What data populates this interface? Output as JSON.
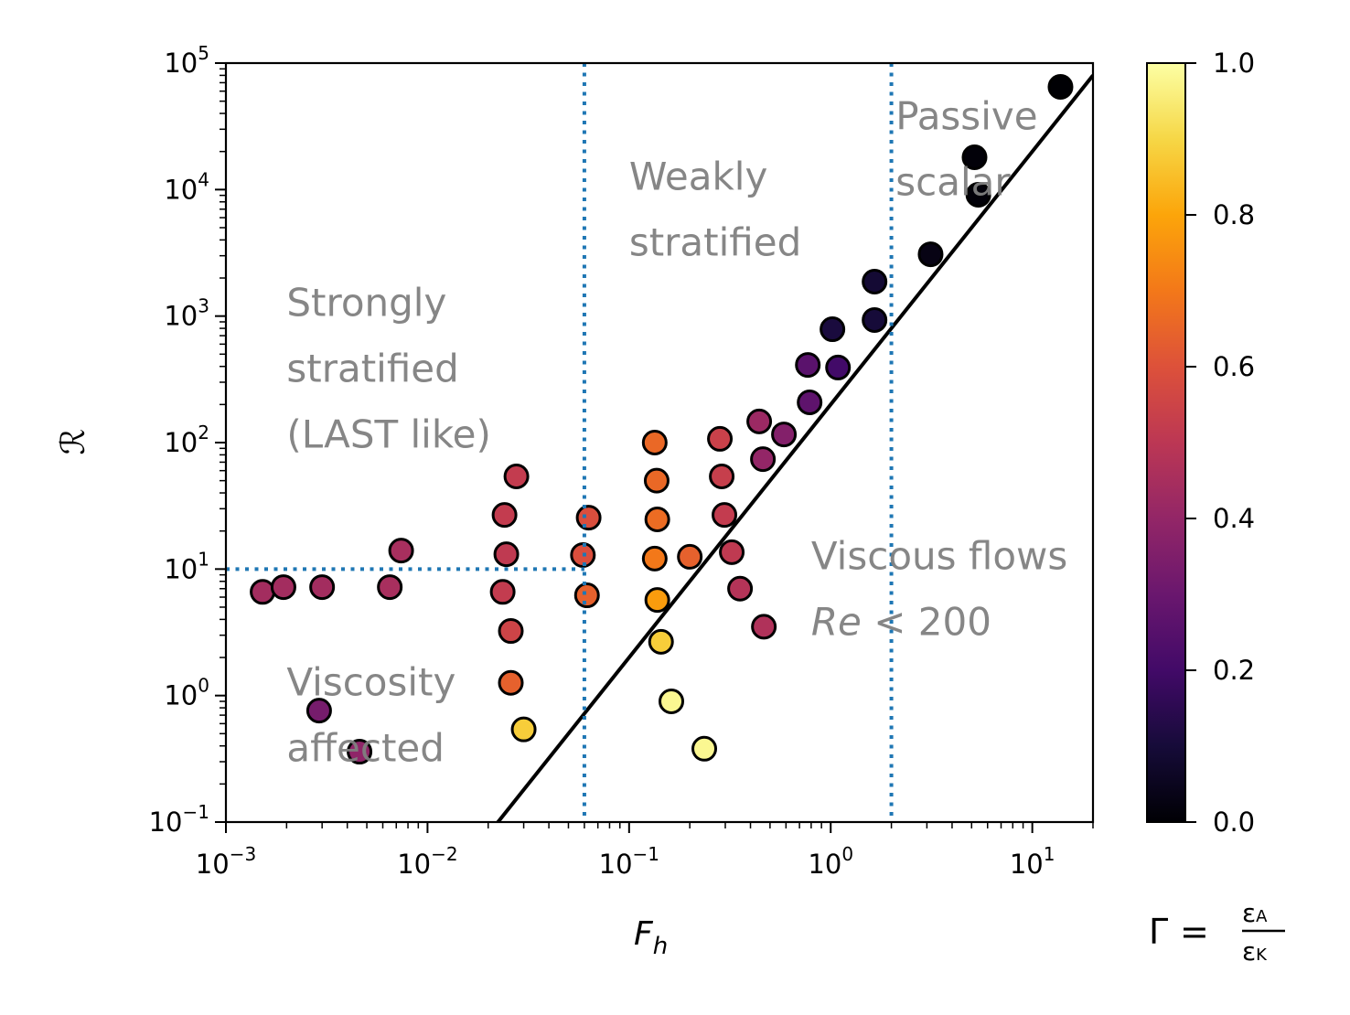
{
  "chart_data": {
    "type": "scatter",
    "title": "",
    "xlabel": "F_h",
    "ylabel": "ℛ",
    "xscale": "log",
    "yscale": "log",
    "xlim": [
      0.001,
      20
    ],
    "ylim": [
      0.1,
      100000
    ],
    "grid": false,
    "x_ticks": [
      {
        "value": 0.001,
        "base": "10",
        "exp": "−3"
      },
      {
        "value": 0.01,
        "base": "10",
        "exp": "−2"
      },
      {
        "value": 0.1,
        "base": "10",
        "exp": "−1"
      },
      {
        "value": 1,
        "base": "10",
        "exp": "0"
      },
      {
        "value": 10,
        "base": "10",
        "exp": "1"
      }
    ],
    "y_ticks": [
      {
        "value": 0.1,
        "base": "10",
        "exp": "−1"
      },
      {
        "value": 1,
        "base": "10",
        "exp": "0"
      },
      {
        "value": 10,
        "base": "10",
        "exp": "1"
      },
      {
        "value": 100,
        "base": "10",
        "exp": "2"
      },
      {
        "value": 1000,
        "base": "10",
        "exp": "3"
      },
      {
        "value": 10000,
        "base": "10",
        "exp": "4"
      },
      {
        "value": 100000,
        "base": "10",
        "exp": "5"
      }
    ],
    "colorbar": {
      "colormap": "inferno",
      "range": [
        0,
        1
      ],
      "ticks": [
        "0.0",
        "0.2",
        "0.4",
        "0.6",
        "0.8",
        "1.0"
      ],
      "label": {
        "lhs": "Γ = ",
        "num": "ε",
        "num_sub": "A",
        "den": "ε",
        "den_sub": "K"
      }
    },
    "reference_lines": [
      {
        "name": "Re = 200 line",
        "kind": "power",
        "formula": "R = 200 * Fh^2",
        "color": "#000000",
        "style": "solid"
      },
      {
        "name": "Fh = 0.06",
        "kind": "vertical",
        "x": 0.06,
        "color": "#1f77b4",
        "style": "dotted"
      },
      {
        "name": "Fh = 2",
        "kind": "vertical",
        "x": 2,
        "color": "#1f77b4",
        "style": "dotted"
      },
      {
        "name": "R = 10",
        "kind": "horizontal",
        "y": 10,
        "x_from": 0.001,
        "x_to": 0.06,
        "color": "#1f77b4",
        "style": "dotted"
      }
    ],
    "annotations": [
      {
        "lines": [
          "Strongly",
          "stratified",
          "(LAST like)"
        ],
        "x": 0.002,
        "y": 1000
      },
      {
        "lines": [
          "Weakly",
          "stratified"
        ],
        "x": 0.1,
        "y": 10000
      },
      {
        "lines": [
          "Passive",
          "scalar"
        ],
        "x": 2.1,
        "y": 30000
      },
      {
        "lines": [
          "Viscous flows",
          "Re < 200"
        ],
        "x": 0.8,
        "y": 10,
        "italic_prefix": "Re"
      },
      {
        "lines": [
          "Viscosity",
          "affected"
        ],
        "x": 0.002,
        "y": 1
      }
    ],
    "series": [
      {
        "name": "simulations",
        "points": [
          {
            "Fh": 0.00152,
            "R": 6.6,
            "Gamma": 0.44
          },
          {
            "Fh": 0.00193,
            "R": 7.2,
            "Gamma": 0.44
          },
          {
            "Fh": 0.003,
            "R": 7.2,
            "Gamma": 0.44
          },
          {
            "Fh": 0.0065,
            "R": 7.2,
            "Gamma": 0.45
          },
          {
            "Fh": 0.0074,
            "R": 14,
            "Gamma": 0.45
          },
          {
            "Fh": 0.0029,
            "R": 0.76,
            "Gamma": 0.33
          },
          {
            "Fh": 0.0046,
            "R": 0.36,
            "Gamma": 0.39
          },
          {
            "Fh": 0.0276,
            "R": 54,
            "Gamma": 0.52
          },
          {
            "Fh": 0.0241,
            "R": 26.8,
            "Gamma": 0.52
          },
          {
            "Fh": 0.0246,
            "R": 13.1,
            "Gamma": 0.51
          },
          {
            "Fh": 0.0236,
            "R": 6.6,
            "Gamma": 0.52
          },
          {
            "Fh": 0.0259,
            "R": 3.24,
            "Gamma": 0.55
          },
          {
            "Fh": 0.0259,
            "R": 1.26,
            "Gamma": 0.64
          },
          {
            "Fh": 0.03,
            "R": 0.54,
            "Gamma": 0.88
          },
          {
            "Fh": 0.063,
            "R": 25.5,
            "Gamma": 0.59
          },
          {
            "Fh": 0.059,
            "R": 12.9,
            "Gamma": 0.59
          },
          {
            "Fh": 0.0618,
            "R": 6.2,
            "Gamma": 0.64
          },
          {
            "Fh": 0.134,
            "R": 100,
            "Gamma": 0.66
          },
          {
            "Fh": 0.137,
            "R": 50,
            "Gamma": 0.66
          },
          {
            "Fh": 0.138,
            "R": 24.7,
            "Gamma": 0.67
          },
          {
            "Fh": 0.134,
            "R": 12.1,
            "Gamma": 0.7
          },
          {
            "Fh": 0.138,
            "R": 5.7,
            "Gamma": 0.78
          },
          {
            "Fh": 0.144,
            "R": 2.66,
            "Gamma": 0.88
          },
          {
            "Fh": 0.162,
            "R": 0.9,
            "Gamma": 0.98
          },
          {
            "Fh": 0.236,
            "R": 0.38,
            "Gamma": 0.98
          },
          {
            "Fh": 0.2,
            "R": 12.5,
            "Gamma": 0.64
          },
          {
            "Fh": 0.282,
            "R": 107,
            "Gamma": 0.54
          },
          {
            "Fh": 0.288,
            "R": 54,
            "Gamma": 0.53
          },
          {
            "Fh": 0.297,
            "R": 26.8,
            "Gamma": 0.52
          },
          {
            "Fh": 0.323,
            "R": 13.6,
            "Gamma": 0.51
          },
          {
            "Fh": 0.355,
            "R": 7.0,
            "Gamma": 0.48
          },
          {
            "Fh": 0.466,
            "R": 3.5,
            "Gamma": 0.47
          },
          {
            "Fh": 0.442,
            "R": 147,
            "Gamma": 0.42
          },
          {
            "Fh": 0.461,
            "R": 74,
            "Gamma": 0.4
          },
          {
            "Fh": 0.586,
            "R": 116,
            "Gamma": 0.36
          },
          {
            "Fh": 0.77,
            "R": 411,
            "Gamma": 0.26
          },
          {
            "Fh": 0.786,
            "R": 208,
            "Gamma": 0.27
          },
          {
            "Fh": 1.087,
            "R": 392,
            "Gamma": 0.2
          },
          {
            "Fh": 1.02,
            "R": 787,
            "Gamma": 0.11
          },
          {
            "Fh": 1.65,
            "R": 931,
            "Gamma": 0.1
          },
          {
            "Fh": 1.65,
            "R": 1871,
            "Gamma": 0.09
          },
          {
            "Fh": 3.13,
            "R": 3080,
            "Gamma": 0.03
          },
          {
            "Fh": 5.4,
            "R": 9100,
            "Gamma": 0.01
          },
          {
            "Fh": 5.17,
            "R": 18000,
            "Gamma": 0.01
          },
          {
            "Fh": 13.8,
            "R": 64900,
            "Gamma": 0.0
          }
        ]
      }
    ]
  }
}
